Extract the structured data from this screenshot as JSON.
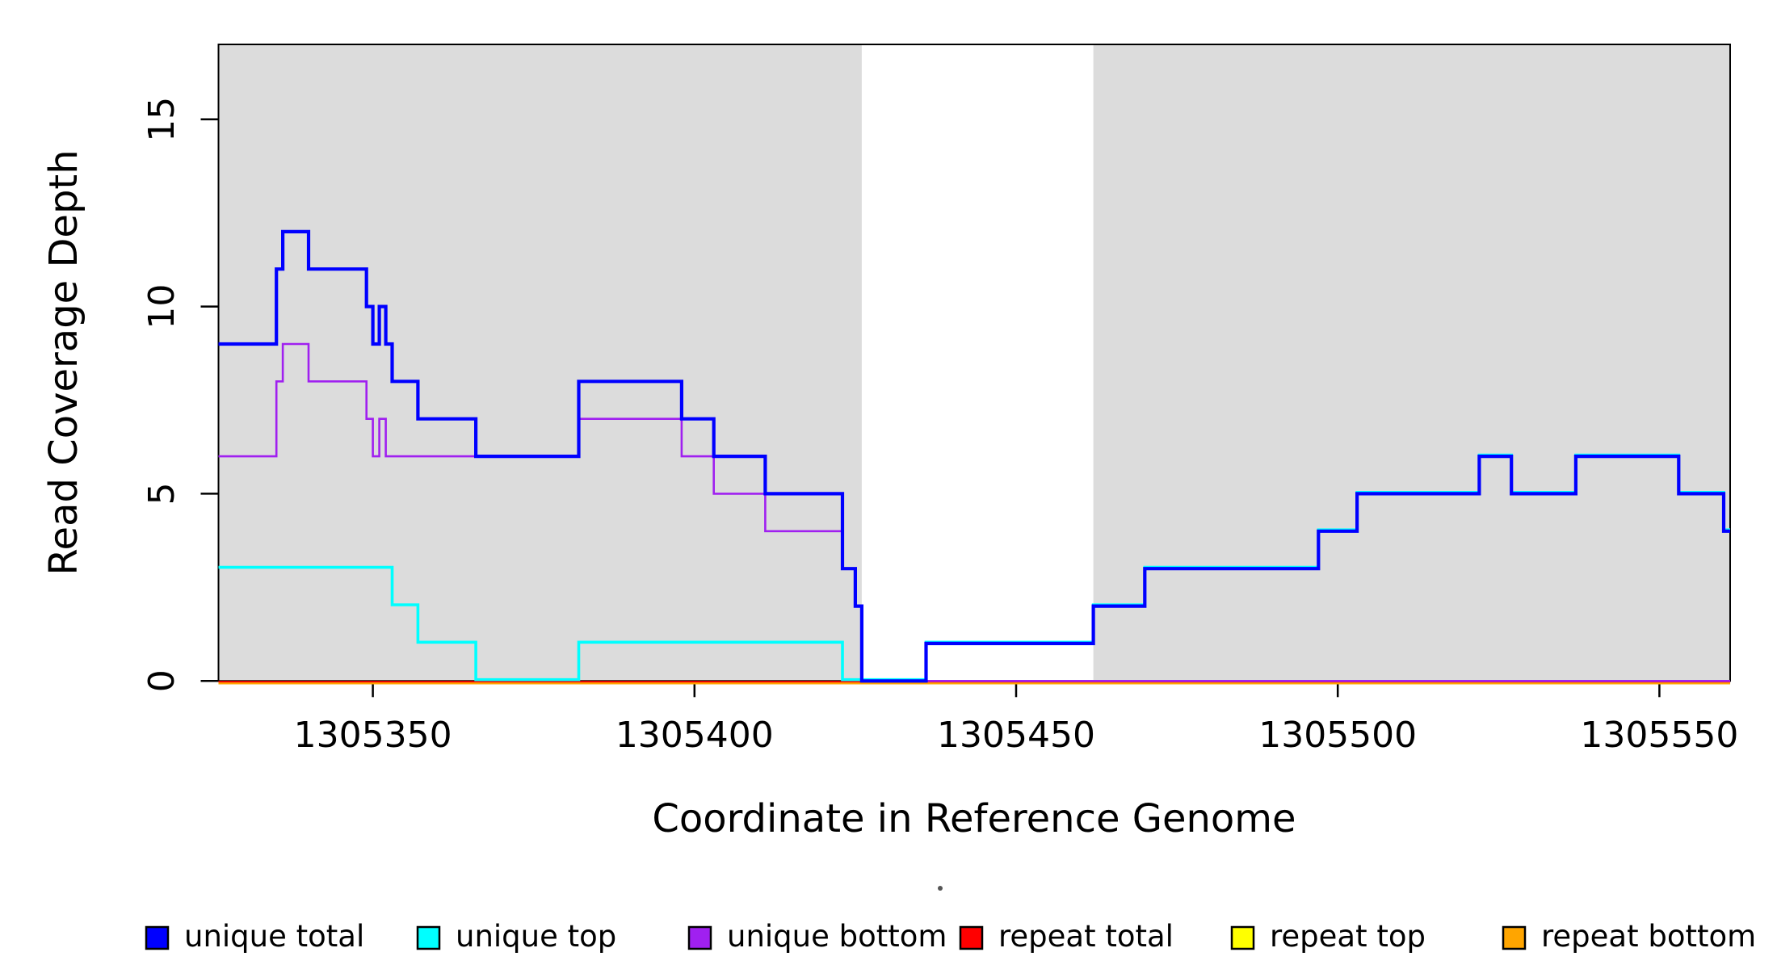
{
  "chart_data": {
    "type": "line",
    "step": true,
    "title": "",
    "xlabel": "Coordinate in Reference Genome",
    "ylabel": "Read Coverage Depth",
    "xlim": [
      1305326,
      1305561
    ],
    "ylim": [
      0,
      17
    ],
    "x_ticks": [
      1305350,
      1305400,
      1305450,
      1305500,
      1305550
    ],
    "y_ticks": [
      0,
      5,
      10,
      15
    ],
    "grid": false,
    "legend_position": "bottom",
    "background_regions": [
      {
        "name": "unique-region-left",
        "start": 1305326,
        "end": 1305426,
        "color": "#DCDCDC"
      },
      {
        "name": "unique-region-right",
        "start": 1305462,
        "end": 1305561,
        "color": "#DCDCDC"
      }
    ],
    "series": [
      {
        "key": "repeat_top",
        "name": "repeat top",
        "color": "#FFFF00",
        "points": [
          [
            1305326,
            0
          ]
        ]
      },
      {
        "key": "repeat_bottom",
        "name": "repeat bottom",
        "color": "#FFA500",
        "points": [
          [
            1305326,
            0
          ]
        ]
      },
      {
        "key": "repeat_total",
        "name": "repeat total",
        "color": "#FF0000",
        "points": [
          [
            1305326,
            0
          ]
        ]
      },
      {
        "key": "unique_bottom",
        "name": "unique bottom",
        "color": "#A020F0",
        "points": [
          [
            1305326,
            6
          ],
          [
            1305335,
            8
          ],
          [
            1305336,
            9
          ],
          [
            1305340,
            8
          ],
          [
            1305349,
            7
          ],
          [
            1305350,
            6
          ],
          [
            1305351,
            7
          ],
          [
            1305352,
            6
          ],
          [
            1305382,
            7
          ],
          [
            1305398,
            6
          ],
          [
            1305403,
            5
          ],
          [
            1305411,
            4
          ],
          [
            1305423,
            3
          ],
          [
            1305425,
            2
          ],
          [
            1305426,
            0
          ]
        ]
      },
      {
        "key": "unique_top",
        "name": "unique top",
        "color": "#00FFFF",
        "points": [
          [
            1305326,
            3
          ],
          [
            1305353,
            2
          ],
          [
            1305357,
            1
          ],
          [
            1305366,
            0
          ],
          [
            1305382,
            1
          ],
          [
            1305423,
            0
          ],
          [
            1305436,
            1
          ],
          [
            1305462,
            2
          ],
          [
            1305470,
            3
          ],
          [
            1305497,
            4
          ],
          [
            1305503,
            5
          ],
          [
            1305522,
            6
          ],
          [
            1305527,
            5
          ],
          [
            1305537,
            6
          ],
          [
            1305553,
            5
          ],
          [
            1305560,
            4
          ]
        ]
      },
      {
        "key": "unique_total",
        "name": "unique total",
        "color": "#0000FF",
        "points": [
          [
            1305326,
            9
          ],
          [
            1305335,
            11
          ],
          [
            1305336,
            12
          ],
          [
            1305340,
            11
          ],
          [
            1305349,
            10
          ],
          [
            1305350,
            9
          ],
          [
            1305351,
            10
          ],
          [
            1305352,
            9
          ],
          [
            1305353,
            8
          ],
          [
            1305357,
            7
          ],
          [
            1305366,
            6
          ],
          [
            1305382,
            8
          ],
          [
            1305398,
            7
          ],
          [
            1305403,
            6
          ],
          [
            1305411,
            5
          ],
          [
            1305423,
            3
          ],
          [
            1305425,
            2
          ],
          [
            1305426,
            0
          ],
          [
            1305436,
            1
          ],
          [
            1305462,
            2
          ],
          [
            1305470,
            3
          ],
          [
            1305497,
            4
          ],
          [
            1305503,
            5
          ],
          [
            1305522,
            6
          ],
          [
            1305527,
            5
          ],
          [
            1305537,
            6
          ],
          [
            1305553,
            5
          ],
          [
            1305560,
            4
          ]
        ]
      }
    ],
    "legend_order": [
      "unique_total",
      "unique_top",
      "unique_bottom",
      "repeat_total",
      "repeat_top",
      "repeat_bottom"
    ]
  }
}
